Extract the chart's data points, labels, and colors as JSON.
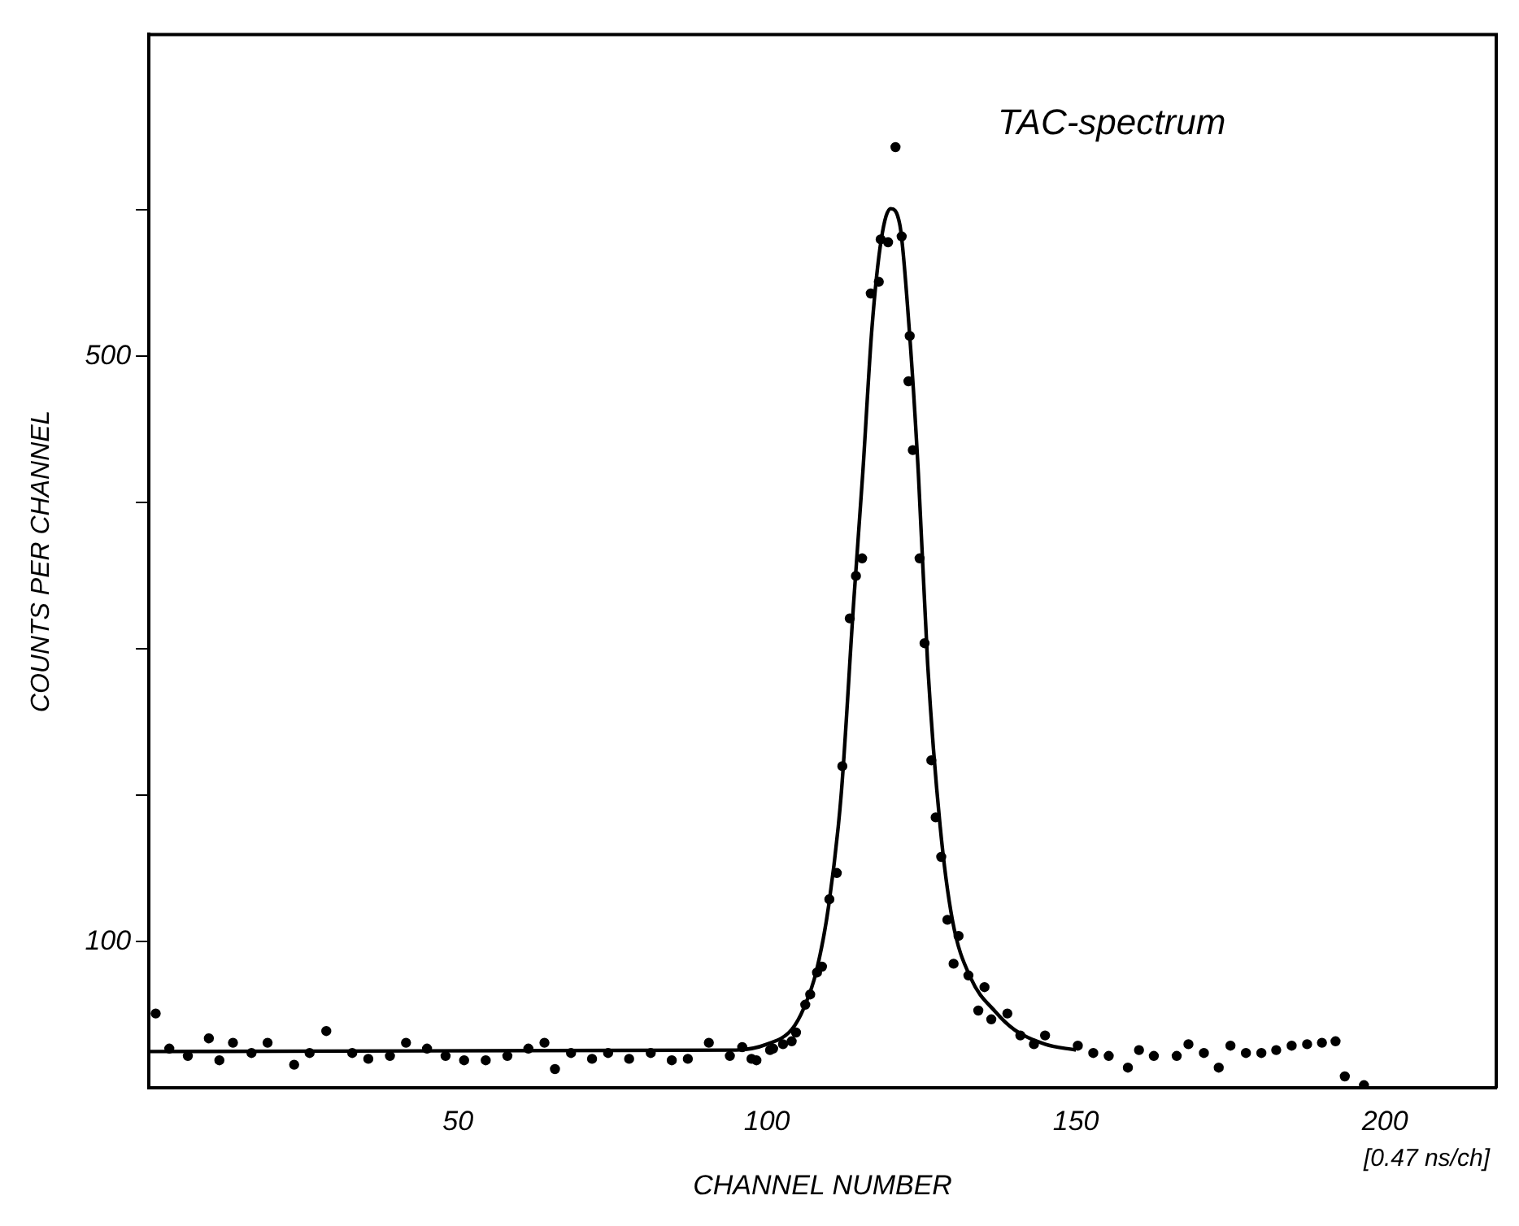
{
  "chart_data": {
    "type": "scatter",
    "title": "TAC-spectrum",
    "xlabel": "CHANNEL NUMBER",
    "ylabel": "COUNTS PER CHANNEL",
    "annotations": [
      "[0.47 ns/ch]"
    ],
    "xlim": [
      0,
      218
    ],
    "ylim": [
      0,
      720
    ],
    "xticks": [
      50,
      100,
      150,
      200
    ],
    "yticks": [
      100,
      {
        "value": 200,
        "label": null
      },
      {
        "value": 300,
        "label": null
      },
      {
        "value": 400,
        "label": null
      },
      500,
      {
        "value": 600,
        "label": null
      }
    ],
    "grid": false,
    "legend": false,
    "marker": "circle",
    "series": [
      {
        "type": "scatter",
        "color": "#000000",
        "x": [
          1.1,
          3.3,
          6.3,
          9.7,
          11.4,
          13.6,
          16.6,
          19.2,
          23.5,
          26,
          28.7,
          32.9,
          35.5,
          39,
          41.6,
          45,
          48,
          51,
          54.5,
          58,
          61.4,
          64,
          65.7,
          68.3,
          71.7,
          74.3,
          77.7,
          81.2,
          84.6,
          87.2,
          90.6,
          94,
          96,
          97.5,
          98.3,
          100.5,
          101,
          102.6,
          104,
          104.7,
          106.2,
          107,
          108.1,
          108.9,
          110.1,
          111.3,
          112.2,
          113.4,
          114.4,
          115.4,
          116.8,
          118.1,
          118.4,
          119.6,
          120.8,
          121.8,
          122.9,
          123.1,
          123.6,
          124.7,
          125.5,
          126.6,
          127.3,
          128.2,
          129.2,
          130.2,
          131,
          132.6,
          134.2,
          135.2,
          136.3,
          138.9,
          141,
          143.2,
          145,
          150.3,
          152.8,
          155.3,
          158.4,
          160.2,
          162.6,
          166.3,
          168.2,
          170.7,
          173.1,
          175,
          177.5,
          180,
          182.4,
          184.9,
          187.4,
          189.8,
          192,
          193.5,
          196.6
        ],
        "values": [
          51,
          27,
          22,
          34,
          19,
          31,
          24,
          31,
          16,
          24,
          39,
          24,
          20,
          22,
          31,
          27,
          22,
          19,
          19,
          22,
          27,
          31,
          13,
          24,
          20,
          24,
          20,
          24,
          19,
          20,
          31,
          22,
          28,
          20,
          19,
          26,
          27,
          30,
          32,
          38,
          57,
          64,
          79,
          83,
          129,
          147,
          220,
          321,
          350,
          362,
          543,
          551,
          580,
          578,
          643,
          582,
          483,
          514,
          436,
          362,
          304,
          224,
          185,
          158,
          115,
          85,
          104,
          77,
          53,
          69,
          47,
          51,
          36,
          30,
          36,
          29,
          24,
          22,
          14,
          26,
          22,
          22,
          30,
          24,
          14,
          29,
          24,
          24,
          26,
          29,
          30,
          31,
          32,
          8,
          2
        ]
      },
      {
        "type": "line",
        "color": "#000000",
        "marker": "none",
        "x": [
          0,
          95,
          100,
          104,
          106,
          108,
          110,
          112,
          114,
          115.5,
          117,
          118.5,
          120,
          121.5,
          123,
          124.5,
          126,
          128,
          130,
          133,
          137,
          140,
          145,
          150
        ],
        "values": [
          25,
          26,
          30,
          40,
          55,
          80,
          125,
          200,
          330,
          420,
          520,
          580,
          601,
          590,
          520,
          420,
          290,
          180,
          115,
          75,
          52,
          40,
          30,
          26
        ]
      }
    ]
  }
}
